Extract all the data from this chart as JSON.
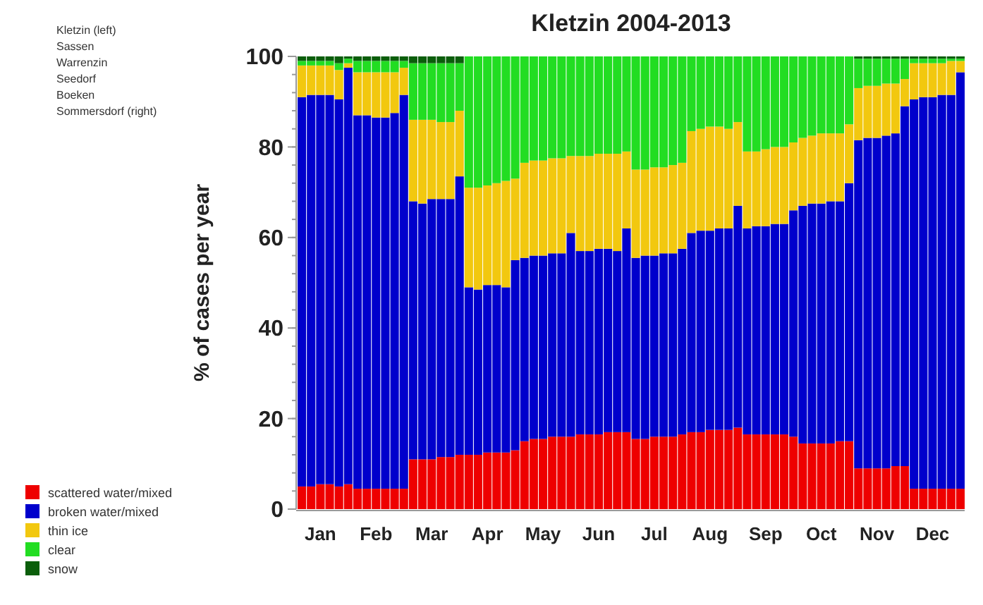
{
  "chart_data": {
    "type": "bar",
    "stacked": true,
    "title": "Kletzin 2004-2013",
    "ylabel": "% of cases per year",
    "categories": [
      null,
      null,
      "Jan",
      null,
      null,
      null,
      null,
      null,
      "Feb",
      null,
      null,
      null,
      null,
      null,
      "Mar",
      null,
      null,
      null,
      null,
      null,
      "Apr",
      null,
      null,
      null,
      null,
      null,
      "May",
      null,
      null,
      null,
      null,
      null,
      "Jun",
      null,
      null,
      null,
      null,
      null,
      "Jul",
      null,
      null,
      null,
      null,
      null,
      "Aug",
      null,
      null,
      null,
      null,
      null,
      "Sep",
      null,
      null,
      null,
      null,
      null,
      "Oct",
      null,
      null,
      null,
      null,
      null,
      "Nov",
      null,
      null,
      null,
      null,
      null,
      "Dec",
      null,
      null,
      null
    ],
    "series": [
      {
        "name": "scattered water/mixed",
        "color": "#ee0000",
        "values": [
          5,
          5,
          5.5,
          5.5,
          5,
          5.5,
          4.5,
          4.5,
          4.5,
          4.5,
          4.5,
          4.5,
          11,
          11,
          11,
          11.5,
          11.5,
          12,
          12,
          12,
          12.5,
          12.5,
          12.5,
          13,
          15,
          15.5,
          15.5,
          16,
          16,
          16,
          16.5,
          16.5,
          16.5,
          17,
          17,
          17,
          15.5,
          15.5,
          16,
          16,
          16,
          16.5,
          17,
          17,
          17.5,
          17.5,
          17.5,
          18,
          16.5,
          16.5,
          16.5,
          16.5,
          16.5,
          16,
          14.5,
          14.5,
          14.5,
          14.5,
          15,
          15,
          9,
          9,
          9,
          9,
          9.5,
          9.5,
          4.5,
          4.5,
          4.5,
          4.5,
          4.5,
          4.5
        ]
      },
      {
        "name": "broken water/mixed",
        "color": "#0000cc",
        "values": [
          86,
          86.5,
          86,
          86,
          85.5,
          92,
          82.5,
          82.5,
          82,
          82,
          83,
          87,
          57,
          56.5,
          57.5,
          57,
          57,
          61.5,
          37,
          36.5,
          37,
          37,
          36.5,
          42,
          40.5,
          40.5,
          40.5,
          40.5,
          40.5,
          45,
          40.5,
          40.5,
          41,
          40.5,
          40,
          45,
          40,
          40.5,
          40,
          40.5,
          40.5,
          41,
          44,
          44.5,
          44,
          44.5,
          44.5,
          49,
          45.5,
          46,
          46,
          46.5,
          46.5,
          50,
          52.5,
          53,
          53,
          53.5,
          53,
          57,
          72.5,
          73,
          73,
          73.5,
          73.5,
          79.5,
          86,
          86.5,
          86.5,
          87,
          87,
          92
        ]
      },
      {
        "name": "thin ice",
        "color": "#f2c80f",
        "values": [
          7,
          6.5,
          6.5,
          6.5,
          6.5,
          1,
          9.5,
          9.5,
          10,
          10,
          9,
          6,
          18,
          18.5,
          17.5,
          17,
          17,
          14.5,
          22,
          22.5,
          22,
          22.5,
          23.5,
          18,
          21,
          21,
          21,
          21,
          21,
          17,
          21,
          21,
          21,
          21,
          21.5,
          17,
          19.5,
          19,
          19.5,
          19,
          19.5,
          19,
          22.5,
          22.5,
          23,
          22.5,
          22,
          18.5,
          17,
          16.5,
          17,
          17,
          17,
          15,
          15,
          15,
          15.5,
          15,
          15,
          13,
          11.5,
          11.5,
          11.5,
          11.5,
          11,
          6,
          8,
          7.5,
          7.5,
          7,
          7.5,
          2.5
        ]
      },
      {
        "name": "clear",
        "color": "#22dd22",
        "values": [
          1,
          1,
          1,
          1,
          1.5,
          1,
          2.5,
          2.5,
          2.5,
          2.5,
          2.5,
          1.5,
          12.5,
          12.5,
          12.5,
          13,
          13,
          10.5,
          29,
          29,
          28.5,
          28,
          27.5,
          27,
          23.5,
          23,
          23,
          22.5,
          22.5,
          22,
          22,
          22,
          21.5,
          21.5,
          21.5,
          21,
          25,
          25,
          24.5,
          24.5,
          24,
          23.5,
          16.5,
          16,
          15.5,
          15.5,
          16,
          14.5,
          21,
          21,
          20.5,
          20,
          20,
          19,
          18,
          17.5,
          17,
          17,
          17,
          15,
          6.5,
          6,
          6,
          5.5,
          5.5,
          4.5,
          1,
          1,
          1,
          1,
          0.5,
          0.5
        ]
      },
      {
        "name": "snow",
        "color": "#0b5e0b",
        "values": [
          1,
          1,
          1,
          1,
          1.5,
          0.5,
          1,
          1,
          1,
          1,
          1,
          1,
          1.5,
          1.5,
          1.5,
          1.5,
          1.5,
          1.5,
          0,
          0,
          0,
          0,
          0,
          0,
          0,
          0,
          0,
          0,
          0,
          0,
          0,
          0,
          0,
          0,
          0,
          0,
          0,
          0,
          0,
          0,
          0,
          0,
          0,
          0,
          0,
          0,
          0,
          0,
          0,
          0,
          0,
          0,
          0,
          0,
          0,
          0,
          0,
          0,
          0,
          0,
          0.5,
          0.5,
          0.5,
          0.5,
          0.5,
          0.5,
          0.5,
          0.5,
          0.5,
          0.5,
          0.5,
          0.5
        ]
      }
    ],
    "ylim": [
      0,
      100
    ],
    "yticks": [
      0,
      20,
      40,
      60,
      80,
      100
    ],
    "legend": "bottom left",
    "annotations": [
      "Kletzin (left)",
      "Sassen",
      "Warrenzin",
      "Seedorf",
      "Boeken",
      "Sommersdorf (right)"
    ]
  }
}
